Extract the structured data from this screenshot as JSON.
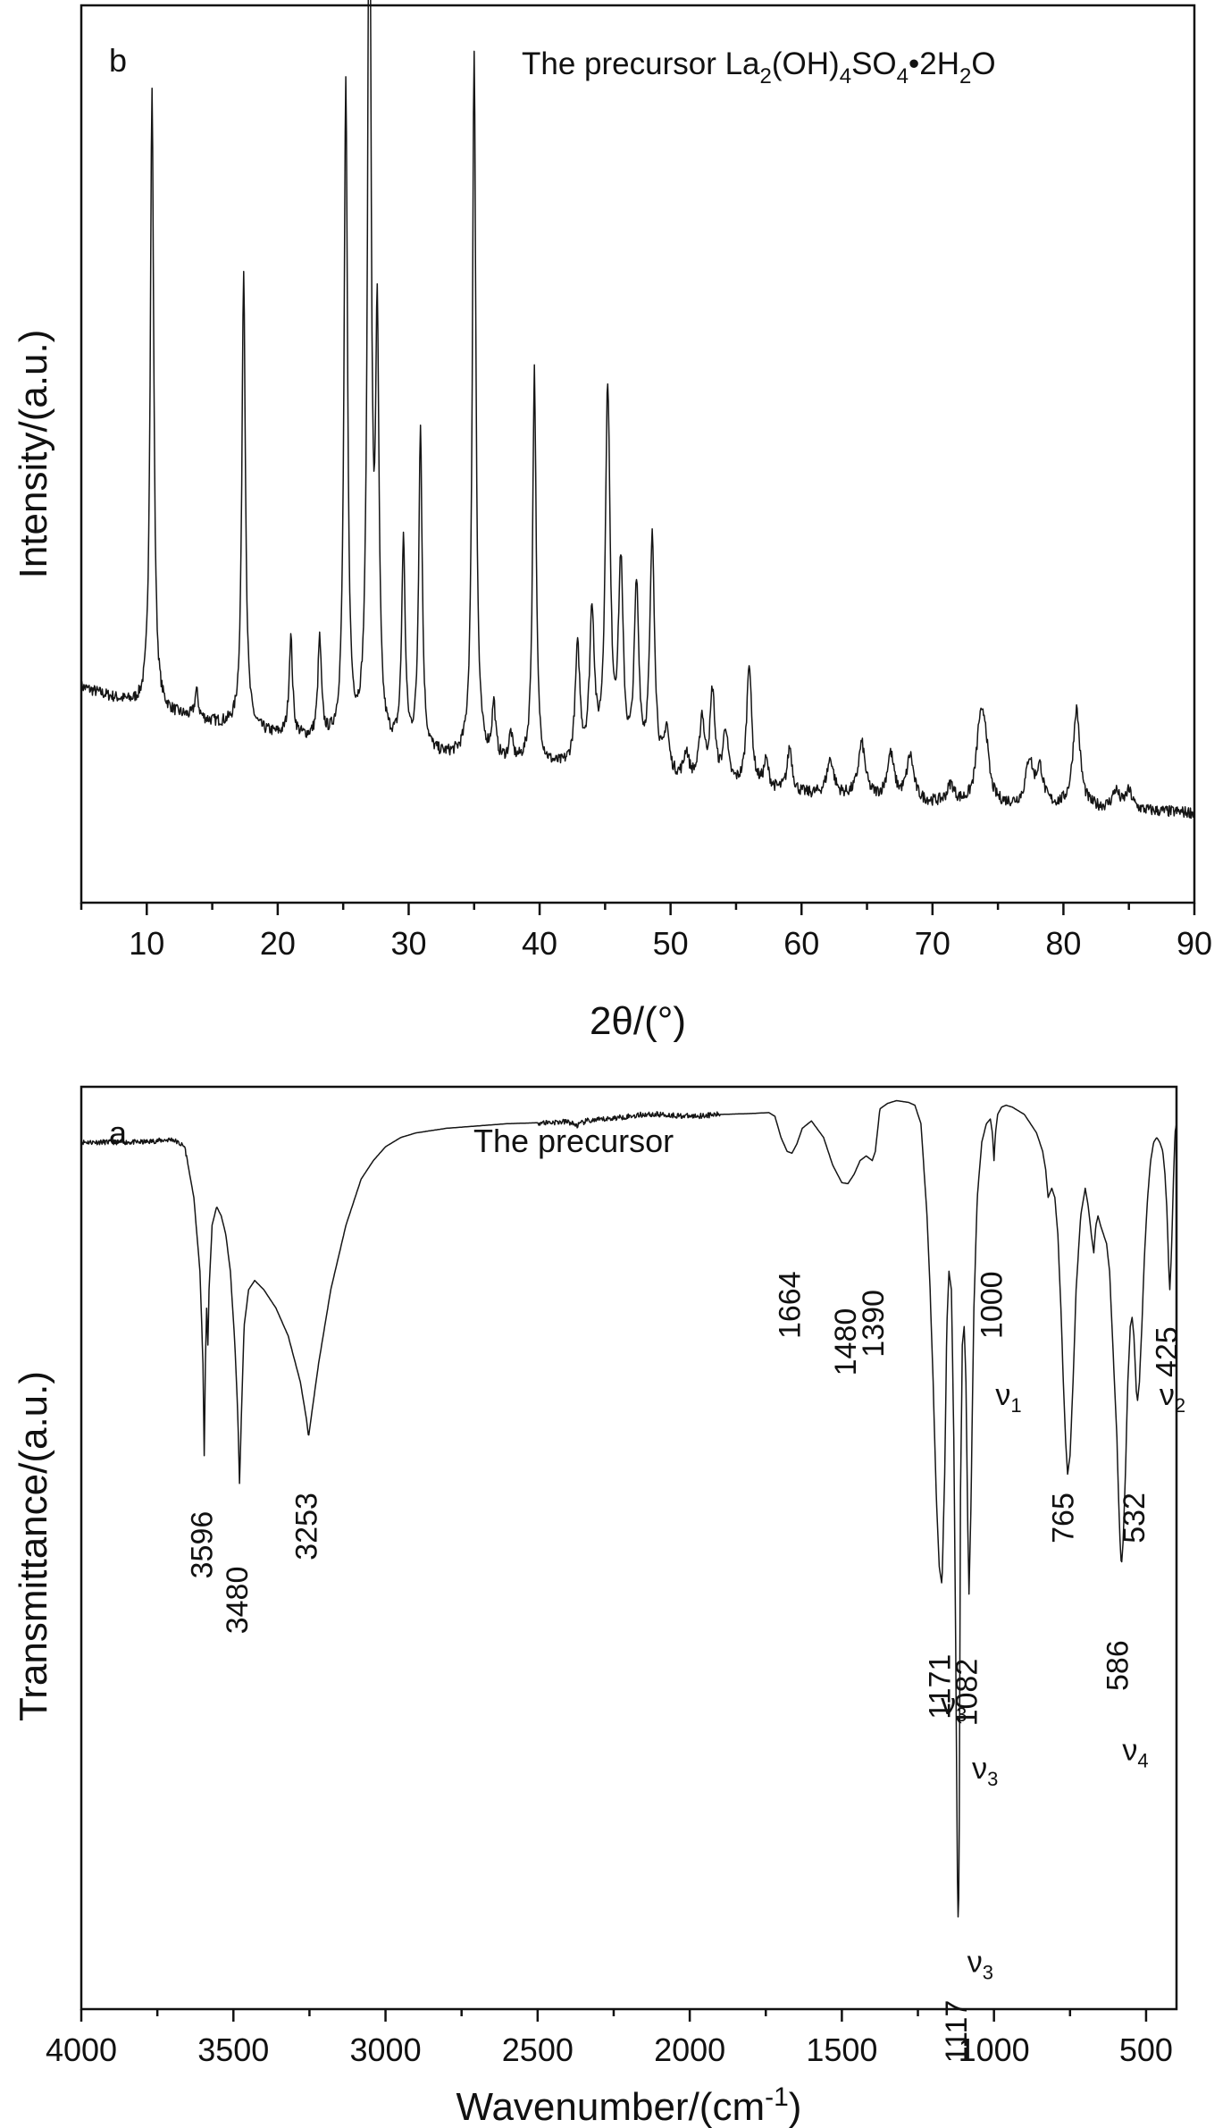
{
  "chart_data": [
    {
      "type": "line",
      "panel_label": "b",
      "title": "The precursor La2(OH)4SO4•2H2O",
      "title_parts": {
        "a": "The precursor La",
        "b": "2",
        "c": "(OH)",
        "d": "4",
        "e": "SO",
        "f": "4",
        "g": "•2H",
        "h": "2",
        "i": "O"
      },
      "xlabel": "2θ/(°)",
      "ylabel": "Intensity/(a.u.)",
      "xlim": [
        5,
        90
      ],
      "ylim": [
        0,
        100
      ],
      "xticks": [
        10,
        20,
        30,
        40,
        50,
        60,
        70,
        80,
        90
      ],
      "xtick_labels": [
        "10",
        "20",
        "30",
        "40",
        "50",
        "60",
        "70",
        "80",
        "90"
      ],
      "show_y_ticks": false,
      "grid": false,
      "baseline": {
        "x": [
          5,
          10,
          20,
          30,
          40,
          50,
          60,
          70,
          80,
          90
        ],
        "y": [
          24,
          21.5,
          18.5,
          16.5,
          15,
          13.5,
          12,
          11,
          10.5,
          10
        ]
      },
      "peaks": [
        {
          "x": 10.4,
          "h": 69
        },
        {
          "x": 13.8,
          "h": 3
        },
        {
          "x": 17.4,
          "h": 51
        },
        {
          "x": 21.0,
          "h": 11
        },
        {
          "x": 23.2,
          "h": 11
        },
        {
          "x": 25.2,
          "h": 73
        },
        {
          "x": 27.0,
          "h": 103
        },
        {
          "x": 27.6,
          "h": 44
        },
        {
          "x": 29.6,
          "h": 23
        },
        {
          "x": 30.9,
          "h": 36
        },
        {
          "x": 35.0,
          "h": 79
        },
        {
          "x": 36.5,
          "h": 6
        },
        {
          "x": 37.8,
          "h": 3
        },
        {
          "x": 39.6,
          "h": 44
        },
        {
          "x": 42.9,
          "h": 13
        },
        {
          "x": 44.0,
          "h": 17
        },
        {
          "x": 45.2,
          "h": 42
        },
        {
          "x": 46.2,
          "h": 22
        },
        {
          "x": 47.4,
          "h": 20
        },
        {
          "x": 48.6,
          "h": 26
        },
        {
          "x": 49.7,
          "h": 5
        },
        {
          "x": 51.2,
          "h": 3
        },
        {
          "x": 52.4,
          "h": 7
        },
        {
          "x": 53.2,
          "h": 10
        },
        {
          "x": 54.2,
          "h": 6
        },
        {
          "x": 56.0,
          "h": 14
        },
        {
          "x": 57.3,
          "h": 3
        },
        {
          "x": 59.1,
          "h": 5
        },
        {
          "x": 62.2,
          "h": 4
        },
        {
          "x": 64.6,
          "h": 6
        },
        {
          "x": 66.8,
          "h": 5
        },
        {
          "x": 68.3,
          "h": 5
        },
        {
          "x": 71.4,
          "h": 2
        },
        {
          "x": 73.6,
          "h": 7
        },
        {
          "x": 74.0,
          "h": 7
        },
        {
          "x": 77.4,
          "h": 5
        },
        {
          "x": 78.2,
          "h": 4
        },
        {
          "x": 81.0,
          "h": 11
        },
        {
          "x": 84.0,
          "h": 2
        },
        {
          "x": 85.0,
          "h": 2
        }
      ]
    },
    {
      "type": "line",
      "panel_label": "a",
      "title": "The precursor",
      "xlabel": "Wavenumber/(cm-1)",
      "xlabel_parts": {
        "main": "Wavenumber/(cm",
        "sup": "-1",
        "close": ")"
      },
      "ylabel": "Transmittance/(a.u.)",
      "xlim": [
        4000,
        400
      ],
      "x_reversed": true,
      "ylim": [
        0,
        100
      ],
      "xticks": [
        4000,
        3500,
        3000,
        2500,
        2000,
        1500,
        1000,
        500
      ],
      "xtick_labels": [
        "4000",
        "3500",
        "3000",
        "2500",
        "2000",
        "1500",
        "1000",
        "500"
      ],
      "show_y_ticks": false,
      "grid": false,
      "spectrum": {
        "x": [
          4000,
          3900,
          3800,
          3700,
          3660,
          3630,
          3610,
          3600,
          3596,
          3592,
          3588,
          3584,
          3580,
          3570,
          3555,
          3540,
          3525,
          3510,
          3495,
          3485,
          3480,
          3474,
          3465,
          3450,
          3430,
          3400,
          3360,
          3320,
          3280,
          3260,
          3253,
          3245,
          3220,
          3180,
          3130,
          3080,
          3040,
          3000,
          2950,
          2900,
          2800,
          2600,
          2400,
          2370,
          2340,
          2300,
          2200,
          2150,
          2100,
          2000,
          1900,
          1800,
          1740,
          1720,
          1700,
          1680,
          1664,
          1648,
          1630,
          1600,
          1560,
          1530,
          1500,
          1480,
          1460,
          1440,
          1420,
          1400,
          1390,
          1375,
          1350,
          1320,
          1300,
          1280,
          1260,
          1240,
          1220,
          1210,
          1200,
          1190,
          1180,
          1171,
          1162,
          1155,
          1148,
          1140,
          1132,
          1125,
          1120,
          1117,
          1114,
          1110,
          1104,
          1098,
          1092,
          1086,
          1082,
          1076,
          1066,
          1055,
          1040,
          1025,
          1012,
          1005,
          1000,
          995,
          988,
          975,
          960,
          940,
          920,
          900,
          880,
          860,
          840,
          830,
          822,
          810,
          800,
          790,
          780,
          772,
          765,
          758,
          750,
          740,
          730,
          715,
          700,
          690,
          680,
          672,
          665,
          658,
          650,
          640,
          630,
          620,
          612,
          604,
          596,
          590,
          586,
          581,
          575,
          568,
          560,
          552,
          546,
          540,
          536,
          532,
          528,
          522,
          514,
          505,
          495,
          485,
          475,
          465,
          455,
          445,
          438,
          432,
          428,
          425,
          422,
          418,
          414,
          410,
          405,
          400
        ],
        "y": [
          94,
          94,
          94,
          94.3,
          93.5,
          88,
          80,
          70,
          60,
          70,
          76,
          72,
          78,
          85,
          87,
          86,
          84,
          80,
          72,
          64,
          57,
          64,
          74,
          78,
          79,
          78,
          76,
          73,
          68,
          64,
          62,
          64,
          70,
          78,
          85,
          90,
          92,
          93.5,
          94.5,
          95,
          95.5,
          96,
          96.2,
          95.8,
          96.3,
          96.4,
          96.8,
          97,
          97,
          96.8,
          97,
          97.1,
          97.2,
          96.8,
          94.5,
          93,
          92.8,
          93.8,
          95.5,
          96.3,
          94.5,
          91.5,
          89.6,
          89.5,
          90.5,
          92,
          92.5,
          92,
          93,
          97.6,
          98.2,
          98.5,
          98.4,
          98.3,
          98,
          96,
          86,
          78,
          68,
          56,
          48,
          46,
          58,
          74,
          80,
          78,
          62,
          36,
          14,
          8,
          20,
          56,
          72,
          74,
          68,
          52,
          45,
          54,
          76,
          88,
          94,
          96,
          96.5,
          95,
          92,
          95,
          97,
          97.8,
          98,
          97.8,
          97.4,
          97,
          96,
          95,
          93,
          91,
          88,
          89,
          88,
          84,
          76,
          68,
          62,
          58,
          60,
          68,
          78,
          86,
          89,
          87,
          84,
          82,
          85,
          86,
          85,
          84,
          83,
          80,
          74,
          68,
          62,
          55,
          51,
          48,
          51,
          58,
          68,
          74,
          75,
          73,
          70,
          67,
          66,
          68,
          74,
          82,
          88,
          92,
          94,
          94.5,
          94,
          93,
          90.5,
          87,
          83,
          80,
          78,
          81,
          85,
          90,
          95,
          96
        ]
      },
      "annotations": [
        {
          "text": "3596",
          "x": 3596,
          "y": 54,
          "rotate": -90
        },
        {
          "text": "3480",
          "x": 3480,
          "y": 48,
          "rotate": -90
        },
        {
          "text": "3253",
          "x": 3253,
          "y": 56,
          "rotate": -90
        },
        {
          "text": "1664",
          "x": 1664,
          "y": 80,
          "rotate": -90
        },
        {
          "text": "1480",
          "x": 1480,
          "y": 76,
          "rotate": -90
        },
        {
          "text": "1390",
          "x": 1390,
          "y": 78,
          "rotate": -90
        },
        {
          "text": "1171",
          "x": 1171,
          "y": 38.5,
          "rotate": -90
        },
        {
          "text": "1082",
          "x": 1082,
          "y": 38,
          "rotate": -90
        },
        {
          "text": "1117",
          "x": 1117,
          "y": 1,
          "rotate": -90
        },
        {
          "text": "1000",
          "x": 1000,
          "y": 80,
          "rotate": -90
        },
        {
          "text": "765",
          "x": 765,
          "y": 56,
          "rotate": -90
        },
        {
          "text": "586",
          "x": 586,
          "y": 40,
          "rotate": -90
        },
        {
          "text": "532",
          "x": 532,
          "y": 56,
          "rotate": -90
        },
        {
          "text": "425",
          "x": 425,
          "y": 74,
          "rotate": -90
        }
      ],
      "mode_labels": [
        {
          "text": "ν",
          "sub": "3",
          "x": 1175,
          "y": 32
        },
        {
          "text": "ν",
          "sub": "3",
          "x": 1072,
          "y": 25
        },
        {
          "text": "ν",
          "sub": "3",
          "x": 1088,
          "y": 4
        },
        {
          "text": "ν",
          "sub": "1",
          "x": 995,
          "y": 65.5
        },
        {
          "text": "ν",
          "sub": "4",
          "x": 578,
          "y": 27
        },
        {
          "text": "ν",
          "sub": "2",
          "x": 456,
          "y": 65.5
        }
      ]
    }
  ]
}
